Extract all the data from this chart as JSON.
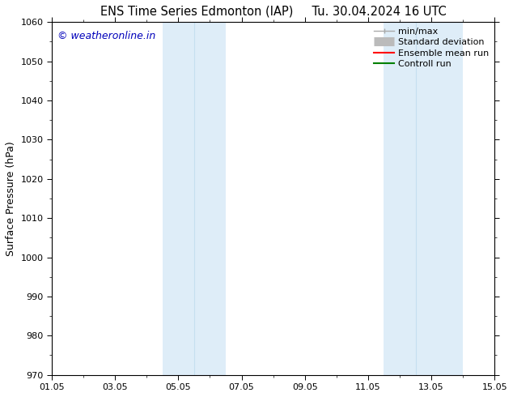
{
  "title_left": "ENS Time Series Edmonton (IAP)",
  "title_right": "Tu. 30.04.2024 16 UTC",
  "ylabel": "Surface Pressure (hPa)",
  "ylim": [
    970,
    1060
  ],
  "yticks": [
    970,
    980,
    990,
    1000,
    1010,
    1020,
    1030,
    1040,
    1050,
    1060
  ],
  "xlim_start": 0,
  "xlim_end": 14,
  "xtick_positions": [
    0,
    2,
    4,
    6,
    8,
    10,
    12,
    14
  ],
  "xtick_labels": [
    "01.05",
    "03.05",
    "05.05",
    "07.05",
    "09.05",
    "11.05",
    "13.05",
    "15.05"
  ],
  "watermark": "© weatheronline.in",
  "watermark_color": "#0000bb",
  "background_color": "#ffffff",
  "plot_bg_color": "#ffffff",
  "shaded_bands": [
    {
      "x_start": 3.5,
      "x_end": 5.5,
      "color": "#deedf8"
    },
    {
      "x_start": 10.5,
      "x_end": 13.0,
      "color": "#deedf8"
    }
  ],
  "band_dividers": [
    4.5,
    11.5
  ],
  "legend_entries": [
    {
      "label": "min/max",
      "color": "#aaaaaa",
      "lw": 1.0,
      "style": "minmax"
    },
    {
      "label": "Standard deviation",
      "color": "#bbbbbb",
      "lw": 8,
      "style": "thick"
    },
    {
      "label": "Ensemble mean run",
      "color": "#ff0000",
      "lw": 1.5,
      "style": "line"
    },
    {
      "label": "Controll run",
      "color": "#008000",
      "lw": 1.5,
      "style": "line"
    }
  ],
  "title_fontsize": 10.5,
  "label_fontsize": 9,
  "tick_fontsize": 8,
  "legend_fontsize": 8,
  "watermark_fontsize": 9
}
